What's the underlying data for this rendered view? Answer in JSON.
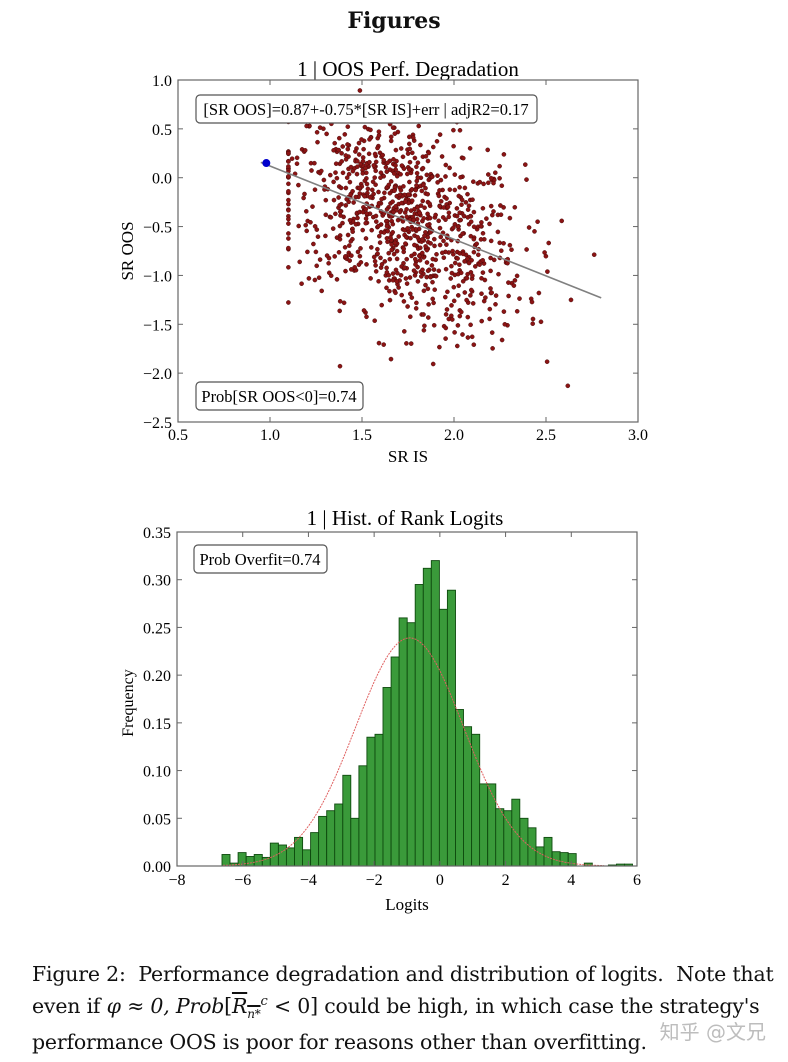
{
  "page": {
    "title": "Figures",
    "caption_line1": "Figure 2:  Performance degradation and distribution of logits.  Note that",
    "caption_line2_pre": "even if ",
    "caption_phi": "φ ≈ 0, ",
    "caption_prob": "Prob",
    "caption_bar_r": "R",
    "caption_sub": "n*",
    "caption_sup": "c",
    "caption_line2_post": " < 0] could be high, in which case the strategy's",
    "caption_line3": "performance OOS is poor for reasons other than overfitting.",
    "watermark": "知乎 @文兄"
  },
  "colors": {
    "scatter_point": "#8b1414",
    "highlight_point": "#0000cc",
    "regression_line": "#808080",
    "bar_fill": "#3a9a3a",
    "bar_edge": "#0e4a0e",
    "fit_curve": "#e06060",
    "axis": "#666666"
  },
  "chart_data": [
    {
      "type": "scatter",
      "title": "1 | OOS Perf. Degradation",
      "xlabel": "SR IS",
      "ylabel": "SR OOS",
      "xlim": [
        0.5,
        3.0
      ],
      "ylim": [
        -2.5,
        1.0
      ],
      "xticks": [
        "0.5",
        "1.0",
        "1.5",
        "2.0",
        "2.5",
        "3.0"
      ],
      "yticks": [
        "1.0",
        "0.5",
        "0.0",
        "−0.5",
        "−1.0",
        "−1.5",
        "−2.0",
        "−2.5"
      ],
      "annotation_top": "[SR OOS]=0.87+-0.75*[SR IS]+err | adjR2=0.17",
      "annotation_bottom": "Prob[SR OOS<0]=0.74",
      "regression": {
        "intercept": 0.87,
        "slope": -0.75,
        "adjR2": 0.17,
        "x_from": 0.95,
        "x_to": 2.8
      },
      "highlight_point": {
        "x": 0.98,
        "y": 0.15
      },
      "cloud": {
        "n": 1000,
        "x_mean": 1.72,
        "x_sd": 0.33,
        "y_resid_sd": 0.52,
        "x_min": 1.1,
        "x_max": 2.85,
        "y_min": -2.25,
        "y_max": 0.95
      },
      "grid": false
    },
    {
      "type": "bar",
      "title": "1 | Hist. of Rank Logits",
      "xlabel": "Logits",
      "ylabel": "Frequency",
      "xlim": [
        -8,
        6
      ],
      "ylim": [
        0.0,
        0.35
      ],
      "xticks": [
        "−8",
        "−6",
        "−4",
        "−2",
        "0",
        "2",
        "4",
        "6"
      ],
      "yticks": [
        "0.35",
        "0.30",
        "0.25",
        "0.20",
        "0.15",
        "0.10",
        "0.05",
        "0.00"
      ],
      "annotation": "Prob Overfit=0.74",
      "bin_start": -6.63,
      "bin_width": 0.245,
      "values": [
        0.012,
        0.003,
        0.014,
        0.01,
        0.012,
        0.009,
        0.024,
        0.022,
        0.019,
        0.03,
        0.017,
        0.035,
        0.052,
        0.058,
        0.065,
        0.095,
        0.05,
        0.105,
        0.135,
        0.138,
        0.187,
        0.219,
        0.26,
        0.255,
        0.295,
        0.312,
        0.32,
        0.269,
        0.289,
        0.164,
        0.146,
        0.138,
        0.086,
        0.086,
        0.06,
        0.058,
        0.07,
        0.05,
        0.04,
        0.02,
        0.03,
        0.015,
        0.014,
        0.013,
        0.0,
        0.003,
        0.0,
        0.0,
        0.001,
        0.002,
        0.002
      ],
      "fit_curve": {
        "type": "normal",
        "mean": -0.92,
        "sd": 1.65,
        "peak": 0.239
      },
      "grid": false
    }
  ]
}
